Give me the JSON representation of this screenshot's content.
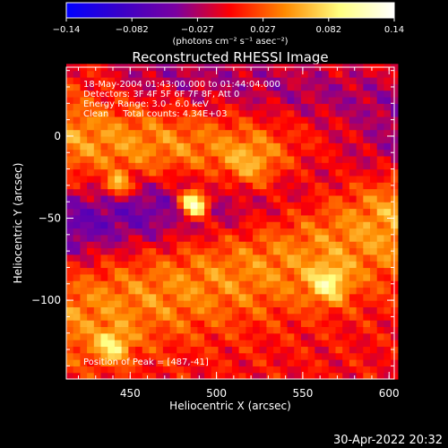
{
  "colorbar": {
    "ticks": [
      "−0.14",
      "−0.082",
      "−0.027",
      "0.027",
      "0.082",
      "0.14"
    ],
    "units": "(photons cm⁻² s⁻¹ asec⁻²)",
    "min": -0.14,
    "max": 0.14,
    "colors": [
      "#0000ff",
      "#3a00c8",
      "#7a00a0",
      "#ff0000",
      "#ff8a00",
      "#ffff80",
      "#ffffff"
    ]
  },
  "chart_data": {
    "type": "heatmap",
    "title": "Reconstructed RHESSI Image",
    "xlabel": "Heliocentric X (arcsec)",
    "ylabel": "Heliocentric Y (arcsec)",
    "xlim": [
      413,
      603
    ],
    "ylim": [
      -148,
      42
    ],
    "xticks": [
      450,
      500,
      550,
      600
    ],
    "yticks": [
      0,
      -50,
      -100
    ],
    "annotations": [
      "18-May-2004 01:43:00.000 to 01:44:04.000",
      "Detectors: 3F 4F 5F 6F 7F 8F, Att 0",
      "Energy Range: 3.0 - 6.0 keV",
      "Clean     Total counts: 4.34E+03"
    ],
    "peak_label": "Position of Peak = [487,-41]",
    "peak": {
      "x": 487,
      "y": -41
    },
    "blobs": [
      {
        "x": 487,
        "y": -41,
        "sigma": 6,
        "amp": 0.16
      },
      {
        "x": 443,
        "y": -30,
        "sigma": 5,
        "amp": 0.08
      },
      {
        "x": 565,
        "y": -90,
        "sigma": 8,
        "amp": 0.07
      },
      {
        "x": 440,
        "y": -128,
        "sigma": 7,
        "amp": 0.07
      },
      {
        "x": 520,
        "y": -20,
        "sigma": 12,
        "amp": 0.05
      }
    ],
    "ridges": [
      {
        "x0": 413,
        "y0": 0,
        "x1": 603,
        "y1": -28,
        "width": 18,
        "amp": 0.05
      },
      {
        "x0": 413,
        "y0": -110,
        "x1": 603,
        "y1": -60,
        "width": 22,
        "amp": 0.045
      }
    ],
    "troughs": [
      {
        "x0": 413,
        "y0": -55,
        "x1": 603,
        "y1": -15,
        "width": 16,
        "amp": -0.06
      },
      {
        "x0": 460,
        "y0": 40,
        "x1": 603,
        "y1": 20,
        "width": 14,
        "amp": -0.03
      }
    ]
  },
  "timestamp": "30-Apr-2022 20:32"
}
